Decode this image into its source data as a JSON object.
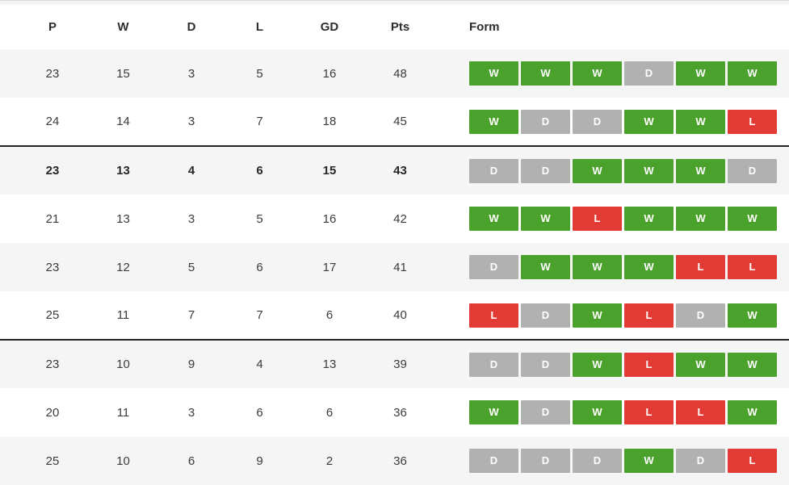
{
  "table": {
    "columns": [
      "P",
      "W",
      "D",
      "L",
      "GD",
      "Pts",
      "Form"
    ],
    "rows": [
      {
        "p": "23",
        "w": "15",
        "d": "3",
        "l": "5",
        "gd": "16",
        "pts": "48",
        "form": [
          "W",
          "W",
          "W",
          "D",
          "W",
          "W"
        ],
        "bold": false,
        "separator_top": false
      },
      {
        "p": "24",
        "w": "14",
        "d": "3",
        "l": "7",
        "gd": "18",
        "pts": "45",
        "form": [
          "W",
          "D",
          "D",
          "W",
          "W",
          "L"
        ],
        "bold": false,
        "separator_top": false
      },
      {
        "p": "23",
        "w": "13",
        "d": "4",
        "l": "6",
        "gd": "15",
        "pts": "43",
        "form": [
          "D",
          "D",
          "W",
          "W",
          "W",
          "D"
        ],
        "bold": true,
        "separator_top": true
      },
      {
        "p": "21",
        "w": "13",
        "d": "3",
        "l": "5",
        "gd": "16",
        "pts": "42",
        "form": [
          "W",
          "W",
          "L",
          "W",
          "W",
          "W"
        ],
        "bold": false,
        "separator_top": false
      },
      {
        "p": "23",
        "w": "12",
        "d": "5",
        "l": "6",
        "gd": "17",
        "pts": "41",
        "form": [
          "D",
          "W",
          "W",
          "W",
          "L",
          "L"
        ],
        "bold": false,
        "separator_top": false
      },
      {
        "p": "25",
        "w": "11",
        "d": "7",
        "l": "7",
        "gd": "6",
        "pts": "40",
        "form": [
          "L",
          "D",
          "W",
          "L",
          "D",
          "W"
        ],
        "bold": false,
        "separator_top": false
      },
      {
        "p": "23",
        "w": "10",
        "d": "9",
        "l": "4",
        "gd": "13",
        "pts": "39",
        "form": [
          "D",
          "D",
          "W",
          "L",
          "W",
          "W"
        ],
        "bold": false,
        "separator_top": true
      },
      {
        "p": "20",
        "w": "11",
        "d": "3",
        "l": "6",
        "gd": "6",
        "pts": "36",
        "form": [
          "W",
          "D",
          "W",
          "L",
          "L",
          "W"
        ],
        "bold": false,
        "separator_top": false
      },
      {
        "p": "25",
        "w": "10",
        "d": "6",
        "l": "9",
        "gd": "2",
        "pts": "36",
        "form": [
          "D",
          "D",
          "D",
          "W",
          "D",
          "L"
        ],
        "bold": false,
        "separator_top": false
      }
    ]
  },
  "form_colors": {
    "W": "#4aa22c",
    "D": "#b1b1b1",
    "L": "#e23b35"
  },
  "ui_colors": {
    "separator_line": "#222222",
    "row_alt_background": "#f5f5f5",
    "badge_text": "#ffffff"
  }
}
